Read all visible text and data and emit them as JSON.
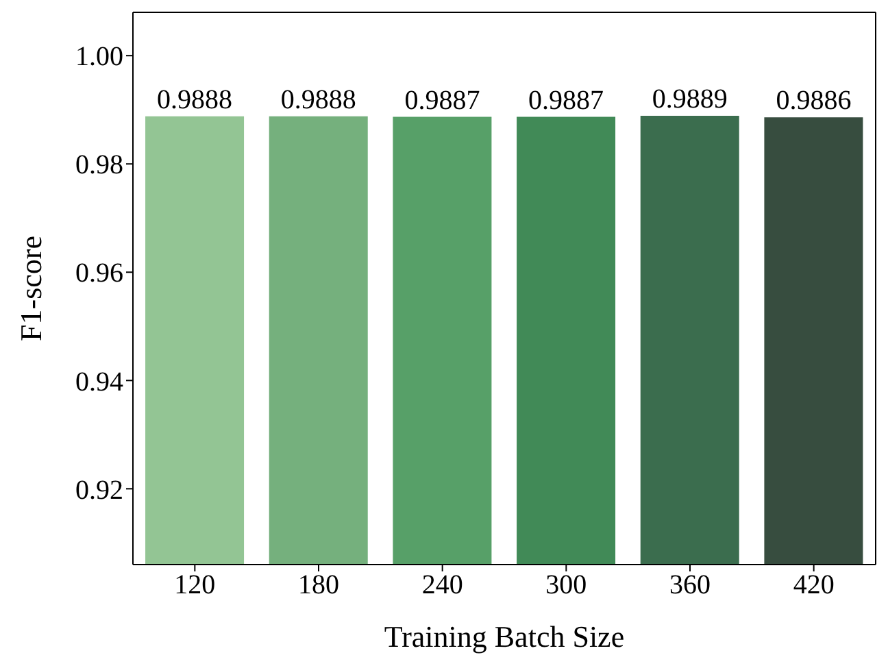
{
  "chart_data": {
    "type": "bar",
    "xlabel": "Training Batch Size",
    "ylabel": "F1-score",
    "categories": [
      "120",
      "180",
      "240",
      "300",
      "360",
      "420"
    ],
    "values": [
      0.9888,
      0.9888,
      0.9887,
      0.9887,
      0.9889,
      0.9886
    ],
    "colors": [
      "#93c594",
      "#75b07d",
      "#57a068",
      "#418a57",
      "#3b6d4e",
      "#374d3f"
    ],
    "ylim": [
      0.906,
      1.008
    ],
    "yticks": [
      0.92,
      0.94,
      0.96,
      0.98,
      {
        "value": 1.0,
        "label": "1.00"
      }
    ],
    "data_labels": true,
    "grid": false
  }
}
